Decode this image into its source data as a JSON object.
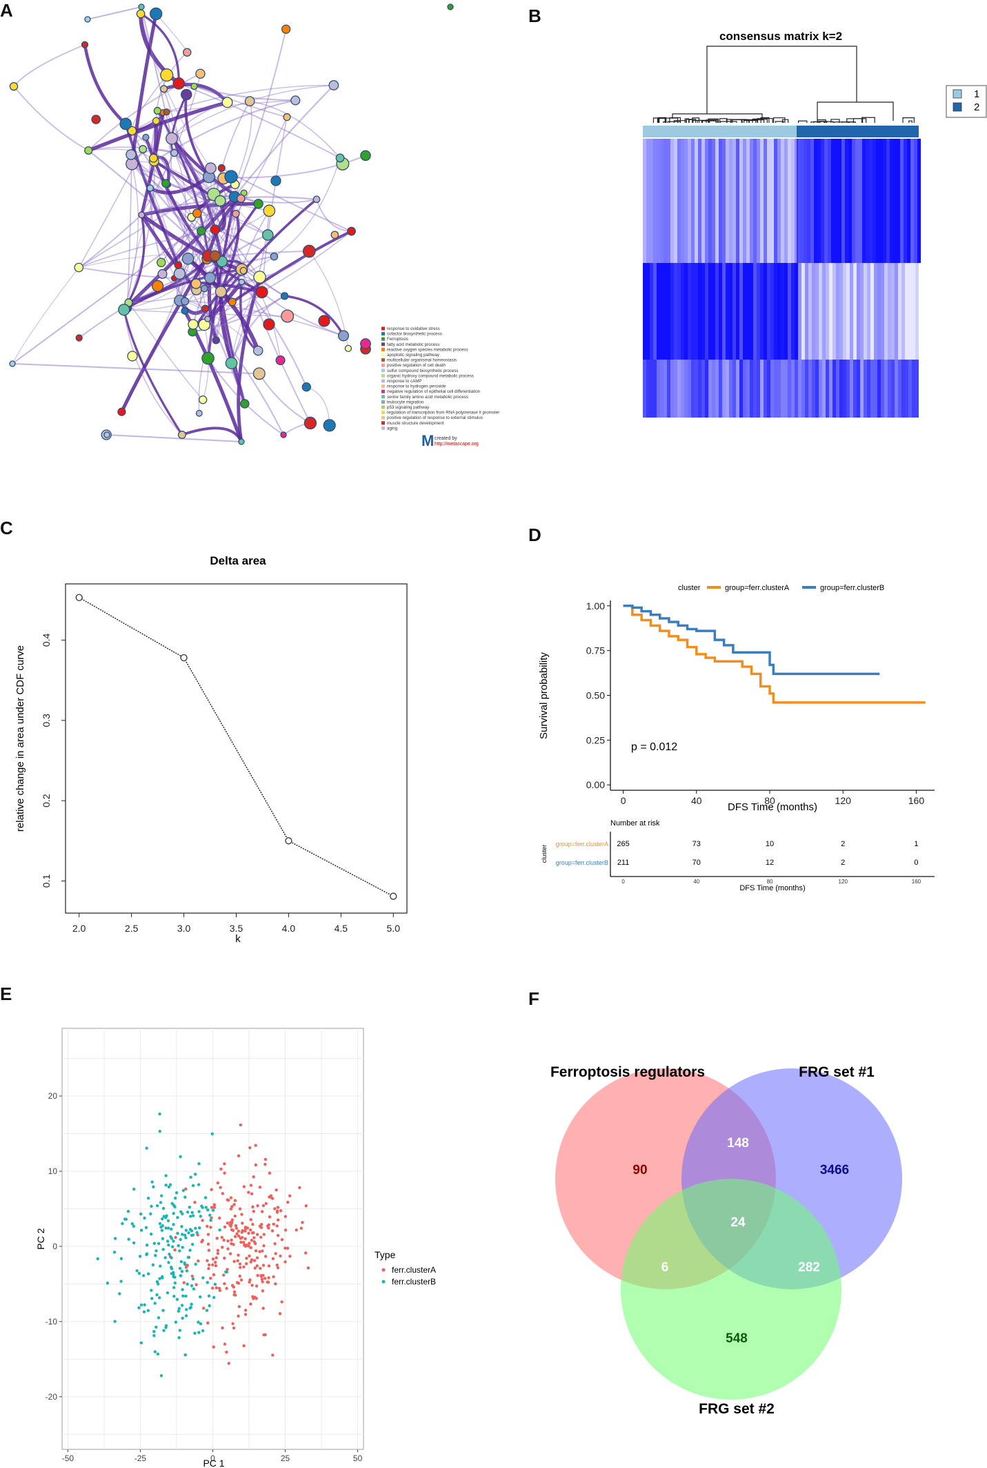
{
  "panels": {
    "A": "A",
    "B": "B",
    "C": "C",
    "D": "D",
    "E": "E",
    "F": "F"
  },
  "network": {
    "legend": [
      {
        "label": "response to oxidative stress",
        "color": "#e31a1c"
      },
      {
        "label": "cofactor biosynthetic process",
        "color": "#1f78b4"
      },
      {
        "label": "Ferroptosis",
        "color": "#33a02c"
      },
      {
        "label": "fatty acid metabolic process",
        "color": "#6a3d9a"
      },
      {
        "label": "reactive oxygen species metabolic process",
        "color": "#ff7f00"
      },
      {
        "label": "apoptotic signaling pathway",
        "color": "#ffff99"
      },
      {
        "label": "multicellular organismal homeostasis",
        "color": "#b15928"
      },
      {
        "label": "positive regulation of cell death",
        "color": "#fb9a99"
      },
      {
        "label": "sulfur compound biosynthetic process",
        "color": "#a6cee3"
      },
      {
        "label": "organic hydroxy compound metabolic process",
        "color": "#b2df8a"
      },
      {
        "label": "response to cAMP",
        "color": "#cab2d6"
      },
      {
        "label": "response to hydrogen peroxide",
        "color": "#fdbf6f"
      },
      {
        "label": "negative regulation of epithelial cell differentiation",
        "color": "#e7298a"
      },
      {
        "label": "serine family amino acid metabolic process",
        "color": "#66c2a5"
      },
      {
        "label": "leukocyte migration",
        "color": "#8da0cb"
      },
      {
        "label": "p53 signaling pathway",
        "color": "#a6d854"
      },
      {
        "label": "regulation of transcription from RNA polymerase II promoter",
        "color": "#ffd92f"
      },
      {
        "label": "positive regulation of response to external stimulus",
        "color": "#e5c494"
      },
      {
        "label": "muscle structure development",
        "color": "#d62728"
      },
      {
        "label": "aging",
        "color": "#bcbddc"
      }
    ],
    "credit_line1": "created by",
    "credit_line2": "http://metascape.org"
  },
  "consensus": {
    "title": "consensus matrix k=2",
    "legend": [
      {
        "label": "1",
        "color": "#9ecae1"
      },
      {
        "label": "2",
        "color": "#2166ac"
      }
    ],
    "heat_color": "#1010ff"
  },
  "chart_data": [
    {
      "id": "C",
      "type": "line",
      "title": "Delta area",
      "xlabel": "k",
      "ylabel": "relative change in area under CDF curve",
      "x": [
        2,
        3,
        4,
        5
      ],
      "y": [
        0.453,
        0.378,
        0.15,
        0.081
      ],
      "xlim": [
        1.87,
        5.13
      ],
      "ylim": [
        0.06,
        0.47
      ],
      "xticks": [
        "2.0",
        "2.5",
        "3.0",
        "3.5",
        "4.0",
        "4.5",
        "5.0"
      ],
      "yticks": [
        "0.1",
        "0.2",
        "0.3",
        "0.4"
      ]
    },
    {
      "id": "D",
      "type": "line",
      "legend_title": "cluster",
      "xlabel": "DFS Time (months)",
      "ylabel": "Survival probability",
      "annotation": "p = 0.012",
      "xlim": [
        -7,
        170
      ],
      "ylim": [
        -0.03,
        1.03
      ],
      "xticks": [
        "0",
        "40",
        "80",
        "120",
        "160"
      ],
      "yticks": [
        "0.00",
        "0.25",
        "0.50",
        "0.75",
        "1.00"
      ],
      "series": [
        {
          "name": "group=ferr.clusterA",
          "color": "#f28e1c",
          "x": [
            0,
            5,
            10,
            15,
            20,
            25,
            30,
            35,
            40,
            45,
            50,
            55,
            60,
            65,
            70,
            75,
            80,
            82,
            165
          ],
          "y": [
            1,
            0.95,
            0.92,
            0.89,
            0.86,
            0.83,
            0.81,
            0.77,
            0.73,
            0.71,
            0.69,
            0.69,
            0.69,
            0.66,
            0.62,
            0.55,
            0.51,
            0.46,
            0.46
          ]
        },
        {
          "name": "group=ferr.clusterB",
          "color": "#3a7ebf",
          "x": [
            0,
            5,
            10,
            15,
            20,
            25,
            30,
            35,
            40,
            45,
            50,
            55,
            60,
            65,
            70,
            75,
            80,
            82,
            140
          ],
          "y": [
            1,
            0.99,
            0.97,
            0.95,
            0.93,
            0.91,
            0.89,
            0.87,
            0.86,
            0.86,
            0.81,
            0.78,
            0.74,
            0.74,
            0.74,
            0.74,
            0.67,
            0.62,
            0.62
          ]
        }
      ],
      "risk_table": {
        "title": "Number at risk",
        "strata_label": "cluster",
        "xlabel": "DFS Time (months)",
        "xticks": [
          "0",
          "40",
          "80",
          "120",
          "160"
        ],
        "rows": [
          {
            "name": "group=ferr.clusterA",
            "color": "#f28e1c",
            "values": [
              "265",
              "73",
              "10",
              "2",
              "1"
            ]
          },
          {
            "name": "group=ferr.clusterB",
            "color": "#3a7ebf",
            "values": [
              "211",
              "70",
              "12",
              "2",
              "0"
            ]
          }
        ]
      }
    },
    {
      "id": "E",
      "type": "scatter",
      "xlabel": "PC 1",
      "ylabel": "PC 2",
      "legend_title": "Type",
      "xlim": [
        -52,
        52
      ],
      "ylim": [
        -27,
        29
      ],
      "xticks": [
        "-50",
        "-25",
        "0",
        "25",
        "50"
      ],
      "yticks": [
        "-20",
        "-10",
        "0",
        "10",
        "20"
      ],
      "series": [
        {
          "name": "ferr.clusterA",
          "color": "#f0605a",
          "center": [
            10,
            0
          ],
          "spread": [
            13,
            7
          ],
          "n": 260
        },
        {
          "name": "ferr.clusterB",
          "color": "#1ab5b5",
          "center": [
            -15,
            -1
          ],
          "spread": [
            12,
            9
          ],
          "n": 215
        }
      ]
    },
    {
      "id": "F",
      "type": "venn",
      "sets": [
        {
          "name": "Ferroptosis regulators",
          "color": "#ff7070"
        },
        {
          "name": "FRG set #1",
          "color": "#6b6bff"
        },
        {
          "name": "FRG set #2",
          "color": "#70ff70"
        }
      ],
      "regions": [
        {
          "label": "90",
          "color": "#8b0000"
        },
        {
          "label": "3466",
          "color": "#0a0a8a"
        },
        {
          "label": "548",
          "color": "#0a5a0a"
        },
        {
          "label": "148",
          "color": "#ffffff"
        },
        {
          "label": "6",
          "color": "#ffffff"
        },
        {
          "label": "282",
          "color": "#ffffff"
        },
        {
          "label": "24",
          "color": "#ffffff"
        }
      ]
    }
  ]
}
